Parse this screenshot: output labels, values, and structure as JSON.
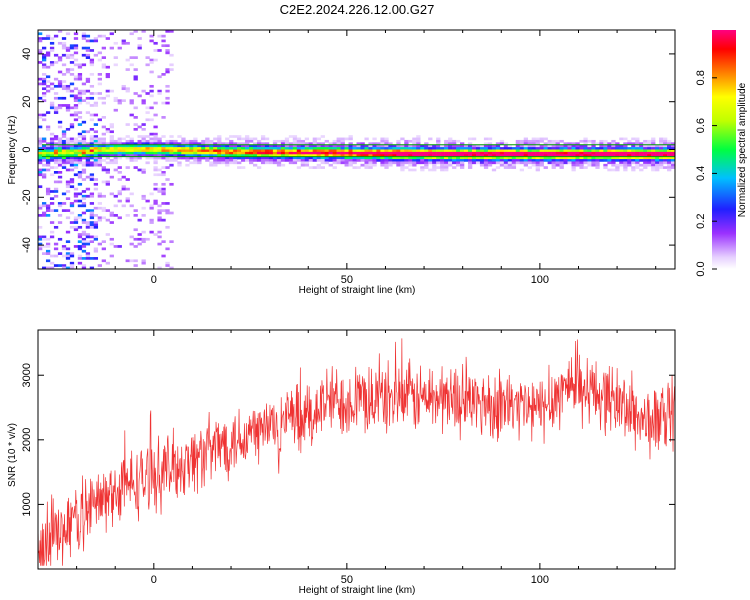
{
  "title": "C2E2.2024.226.12.00.G27",
  "colors": {
    "snr_line": "#ef3333",
    "frame": "#000000",
    "center_line": "#00a000"
  },
  "chart_data": [
    {
      "type": "heatmap",
      "name": "spectrogram",
      "xlabel": "Height of straight line (km)",
      "ylabel": "Frequency (Hz)",
      "xlim": [
        -30,
        135
      ],
      "ylim": [
        -50,
        50
      ],
      "xticks": [
        0,
        50,
        100
      ],
      "yticks": [
        -40,
        -20,
        0,
        20,
        40
      ],
      "colorbar": {
        "label": "Normalized spectral amplitude",
        "range": [
          0,
          1
        ],
        "ticks": [
          0.0,
          0.2,
          0.4,
          0.6,
          0.8
        ],
        "colormap": "rainbow (white-violet-blue-cyan-green-yellow-red-magenta)"
      },
      "reference_lines_hz": [
        2,
        -3
      ],
      "ridge": {
        "description": "Dominant spectral ridge near 0 Hz, drifting slightly negative with height",
        "points": [
          {
            "x": -30,
            "y": -2.0
          },
          {
            "x": -10,
            "y": 0.0
          },
          {
            "x": 0,
            "y": 0.0
          },
          {
            "x": 20,
            "y": -1.0
          },
          {
            "x": 50,
            "y": -1.5
          },
          {
            "x": 80,
            "y": -2.0
          },
          {
            "x": 100,
            "y": -2.0
          },
          {
            "x": 135,
            "y": -2.0
          }
        ]
      }
    },
    {
      "type": "line",
      "name": "snr",
      "xlabel": "Height of straight line (km)",
      "ylabel": "SNR (10 * v/v)",
      "xlim": [
        -30,
        135
      ],
      "ylim": [
        0,
        3700
      ],
      "xticks": [
        0,
        50,
        100
      ],
      "yticks": [
        1000,
        2000,
        3000
      ],
      "series": [
        {
          "trend": [
            {
              "x": -30,
              "y": 300
            },
            {
              "x": -20,
              "y": 800
            },
            {
              "x": -10,
              "y": 1200
            },
            {
              "x": 0,
              "y": 1450
            },
            {
              "x": 10,
              "y": 1700
            },
            {
              "x": 20,
              "y": 2000
            },
            {
              "x": 30,
              "y": 2200
            },
            {
              "x": 40,
              "y": 2350
            },
            {
              "x": 45,
              "y": 2600
            },
            {
              "x": 60,
              "y": 2650
            },
            {
              "x": 75,
              "y": 2650
            },
            {
              "x": 90,
              "y": 2550
            },
            {
              "x": 100,
              "y": 2450
            },
            {
              "x": 108,
              "y": 2900
            },
            {
              "x": 120,
              "y": 2600
            },
            {
              "x": 128,
              "y": 2250
            },
            {
              "x": 135,
              "y": 2400
            }
          ],
          "noise_amplitude": 450
        }
      ]
    }
  ]
}
